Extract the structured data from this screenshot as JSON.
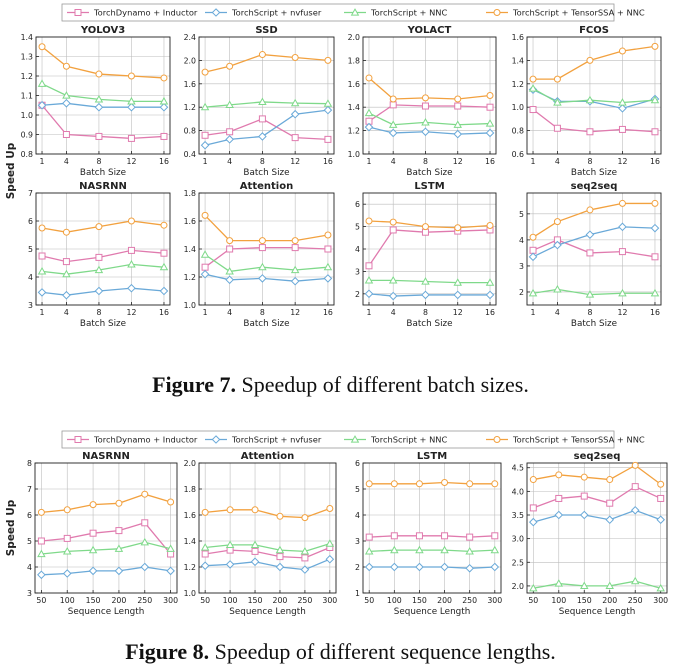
{
  "colors": {
    "TorchDynamo + Inductor": "#e07aae",
    "TorchScript + nvfuser": "#6aa9d8",
    "TorchScript + NNC": "#7fd98a",
    "TorchScript + TensorSSA + NNC": "#f2a13f"
  },
  "figure7": {
    "legend": [
      "TorchDynamo + Inductor",
      "TorchScript + nvfuser",
      "TorchScript + NNC",
      "TorchScript + TensorSSA + NNC"
    ],
    "caption_label": "Figure 7.",
    "caption_text": "Speedup of different batch sizes."
  },
  "figure8": {
    "legend": [
      "TorchDynamo + Inductor",
      "TorchScript + nvfuser",
      "TorchScript + NNC",
      "TorchScript + TensorSSA + NNC"
    ],
    "caption_label": "Figure 8.",
    "caption_text": "Speedup of different sequence lengths."
  },
  "chart_data": [
    {
      "type": "line",
      "figure": 7,
      "title": "YOLOV3",
      "xlabel": "Batch Size",
      "ylabel": "Speed Up",
      "x": [
        1,
        4,
        8,
        12,
        16
      ],
      "xticks": [
        1,
        4,
        8,
        12,
        16
      ],
      "ylim": [
        0.8,
        1.4
      ],
      "yticks": [
        "0.8",
        "0.9",
        "1.0",
        "1.1",
        "1.2",
        "1.3",
        "1.4"
      ],
      "series": [
        {
          "name": "TorchDynamo + Inductor",
          "values": [
            1.05,
            0.9,
            0.89,
            0.88,
            0.89
          ]
        },
        {
          "name": "TorchScript + nvfuser",
          "values": [
            1.05,
            1.06,
            1.04,
            1.04,
            1.04
          ]
        },
        {
          "name": "TorchScript + NNC",
          "values": [
            1.16,
            1.1,
            1.08,
            1.07,
            1.07
          ]
        },
        {
          "name": "TorchScript + TensorSSA + NNC",
          "values": [
            1.35,
            1.25,
            1.21,
            1.2,
            1.19
          ]
        }
      ]
    },
    {
      "type": "line",
      "figure": 7,
      "title": "SSD",
      "xlabel": "Batch Size",
      "ylabel": "",
      "x": [
        1,
        4,
        8,
        12,
        16
      ],
      "xticks": [
        1,
        4,
        8,
        12,
        16
      ],
      "ylim": [
        0.4,
        2.4
      ],
      "yticks": [
        "0.4",
        "0.8",
        "1.2",
        "1.6",
        "2.0",
        "2.4"
      ],
      "series": [
        {
          "name": "TorchDynamo + Inductor",
          "values": [
            0.72,
            0.78,
            1.0,
            0.68,
            0.65
          ]
        },
        {
          "name": "TorchScript + nvfuser",
          "values": [
            0.55,
            0.65,
            0.7,
            1.08,
            1.15
          ]
        },
        {
          "name": "TorchScript + NNC",
          "values": [
            1.2,
            1.24,
            1.29,
            1.27,
            1.26
          ]
        },
        {
          "name": "TorchScript + TensorSSA + NNC",
          "values": [
            1.8,
            1.9,
            2.1,
            2.05,
            2.0
          ]
        }
      ]
    },
    {
      "type": "line",
      "figure": 7,
      "title": "YOLACT",
      "xlabel": "Batch Size",
      "ylabel": "",
      "x": [
        1,
        4,
        8,
        12,
        16
      ],
      "xticks": [
        1,
        4,
        8,
        12,
        16
      ],
      "ylim": [
        1.0,
        2.0
      ],
      "yticks": [
        "1.0",
        "1.2",
        "1.4",
        "1.6",
        "1.8",
        "2.0"
      ],
      "series": [
        {
          "name": "TorchDynamo + Inductor",
          "values": [
            1.28,
            1.42,
            1.41,
            1.41,
            1.4
          ]
        },
        {
          "name": "TorchScript + nvfuser",
          "values": [
            1.23,
            1.18,
            1.19,
            1.17,
            1.18
          ]
        },
        {
          "name": "TorchScript + NNC",
          "values": [
            1.35,
            1.25,
            1.27,
            1.25,
            1.26
          ]
        },
        {
          "name": "TorchScript + TensorSSA + NNC",
          "values": [
            1.65,
            1.47,
            1.48,
            1.47,
            1.5
          ]
        }
      ]
    },
    {
      "type": "line",
      "figure": 7,
      "title": "FCOS",
      "xlabel": "Batch Size",
      "ylabel": "",
      "x": [
        1,
        4,
        8,
        12,
        16
      ],
      "xticks": [
        1,
        4,
        8,
        12,
        16
      ],
      "ylim": [
        0.6,
        1.6
      ],
      "yticks": [
        "0.6",
        "0.8",
        "1.0",
        "1.2",
        "1.4",
        "1.6"
      ],
      "series": [
        {
          "name": "TorchDynamo + Inductor",
          "values": [
            0.98,
            0.82,
            0.79,
            0.81,
            0.79
          ]
        },
        {
          "name": "TorchScript + nvfuser",
          "values": [
            1.15,
            1.05,
            1.05,
            0.99,
            1.07
          ]
        },
        {
          "name": "TorchScript + NNC",
          "values": [
            1.16,
            1.04,
            1.06,
            1.04,
            1.06
          ]
        },
        {
          "name": "TorchScript + TensorSSA + NNC",
          "values": [
            1.24,
            1.24,
            1.4,
            1.48,
            1.52
          ]
        }
      ]
    },
    {
      "type": "line",
      "figure": 7,
      "title": "NASRNN",
      "xlabel": "Batch Size",
      "ylabel": "",
      "x": [
        1,
        4,
        8,
        12,
        16
      ],
      "xticks": [
        1,
        4,
        8,
        12,
        16
      ],
      "ylim": [
        3,
        7
      ],
      "yticks": [
        "3",
        "4",
        "5",
        "6",
        "7"
      ],
      "series": [
        {
          "name": "TorchDynamo + Inductor",
          "values": [
            4.75,
            4.55,
            4.7,
            4.95,
            4.85
          ]
        },
        {
          "name": "TorchScript + nvfuser",
          "values": [
            3.45,
            3.35,
            3.5,
            3.6,
            3.5
          ]
        },
        {
          "name": "TorchScript + NNC",
          "values": [
            4.2,
            4.1,
            4.25,
            4.45,
            4.35
          ]
        },
        {
          "name": "TorchScript + TensorSSA + NNC",
          "values": [
            5.75,
            5.6,
            5.8,
            6.0,
            5.85
          ]
        }
      ]
    },
    {
      "type": "line",
      "figure": 7,
      "title": "Attention",
      "xlabel": "Batch Size",
      "ylabel": "",
      "x": [
        1,
        4,
        8,
        12,
        16
      ],
      "xticks": [
        1,
        4,
        8,
        12,
        16
      ],
      "ylim": [
        1.0,
        1.8
      ],
      "yticks": [
        "1.0",
        "1.2",
        "1.4",
        "1.6",
        "1.8"
      ],
      "series": [
        {
          "name": "TorchDynamo + Inductor",
          "values": [
            1.27,
            1.4,
            1.41,
            1.41,
            1.4
          ]
        },
        {
          "name": "TorchScript + nvfuser",
          "values": [
            1.22,
            1.18,
            1.19,
            1.17,
            1.19
          ]
        },
        {
          "name": "TorchScript + NNC",
          "values": [
            1.36,
            1.24,
            1.27,
            1.25,
            1.27
          ]
        },
        {
          "name": "TorchScript + TensorSSA + NNC",
          "values": [
            1.64,
            1.46,
            1.46,
            1.46,
            1.5
          ]
        }
      ]
    },
    {
      "type": "line",
      "figure": 7,
      "title": "LSTM",
      "xlabel": "Batch Size",
      "ylabel": "",
      "x": [
        1,
        4,
        8,
        12,
        16
      ],
      "xticks": [
        1,
        4,
        8,
        12,
        16
      ],
      "ylim": [
        1.5,
        6.5
      ],
      "yticks": [
        "2",
        "3",
        "4",
        "5",
        "6"
      ],
      "series": [
        {
          "name": "TorchDynamo + Inductor",
          "values": [
            3.25,
            4.85,
            4.75,
            4.8,
            4.85
          ]
        },
        {
          "name": "TorchScript + nvfuser",
          "values": [
            2.0,
            1.9,
            1.95,
            1.95,
            1.95
          ]
        },
        {
          "name": "TorchScript + NNC",
          "values": [
            2.6,
            2.6,
            2.55,
            2.5,
            2.5
          ]
        },
        {
          "name": "TorchScript + TensorSSA + NNC",
          "values": [
            5.25,
            5.2,
            5.0,
            4.95,
            5.05
          ]
        }
      ]
    },
    {
      "type": "line",
      "figure": 7,
      "title": "seq2seq",
      "xlabel": "Batch Size",
      "ylabel": "",
      "x": [
        1,
        4,
        8,
        12,
        16
      ],
      "xticks": [
        1,
        4,
        8,
        12,
        16
      ],
      "ylim": [
        1.5,
        5.8
      ],
      "yticks": [
        "2",
        "3",
        "4",
        "5"
      ],
      "series": [
        {
          "name": "TorchDynamo + Inductor",
          "values": [
            3.6,
            4.0,
            3.5,
            3.55,
            3.35
          ]
        },
        {
          "name": "TorchScript + nvfuser",
          "values": [
            3.35,
            3.8,
            4.2,
            4.5,
            4.45
          ]
        },
        {
          "name": "TorchScript + NNC",
          "values": [
            1.95,
            2.1,
            1.9,
            1.95,
            1.95
          ]
        },
        {
          "name": "TorchScript + TensorSSA + NNC",
          "values": [
            4.1,
            4.7,
            5.15,
            5.4,
            5.4
          ]
        }
      ]
    },
    {
      "type": "line",
      "figure": 8,
      "title": "NASRNN",
      "xlabel": "Sequence Length",
      "ylabel": "Speed Up",
      "x": [
        50,
        100,
        150,
        200,
        250,
        300
      ],
      "xticks": [
        50,
        100,
        150,
        200,
        250,
        300
      ],
      "ylim": [
        3,
        8
      ],
      "yticks": [
        "3",
        "4",
        "5",
        "6",
        "7",
        "8"
      ],
      "series": [
        {
          "name": "TorchDynamo + Inductor",
          "values": [
            5.0,
            5.1,
            5.3,
            5.4,
            5.7,
            4.5
          ]
        },
        {
          "name": "TorchScript + nvfuser",
          "values": [
            3.7,
            3.75,
            3.85,
            3.85,
            4.0,
            3.85
          ]
        },
        {
          "name": "TorchScript + NNC",
          "values": [
            4.5,
            4.6,
            4.65,
            4.7,
            4.95,
            4.7
          ]
        },
        {
          "name": "TorchScript + TensorSSA + NNC",
          "values": [
            6.1,
            6.2,
            6.4,
            6.45,
            6.8,
            6.5
          ]
        }
      ]
    },
    {
      "type": "line",
      "figure": 8,
      "title": "Attention",
      "xlabel": "Sequence Length",
      "ylabel": "",
      "x": [
        50,
        100,
        150,
        200,
        250,
        300
      ],
      "xticks": [
        50,
        100,
        150,
        200,
        250,
        300
      ],
      "ylim": [
        1.0,
        2.0
      ],
      "yticks": [
        "1.0",
        "1.2",
        "1.4",
        "1.6",
        "1.8",
        "2.0"
      ],
      "series": [
        {
          "name": "TorchDynamo + Inductor",
          "values": [
            1.3,
            1.33,
            1.32,
            1.28,
            1.27,
            1.35
          ]
        },
        {
          "name": "TorchScript + nvfuser",
          "values": [
            1.21,
            1.22,
            1.24,
            1.2,
            1.18,
            1.26
          ]
        },
        {
          "name": "TorchScript + NNC",
          "values": [
            1.35,
            1.37,
            1.37,
            1.33,
            1.32,
            1.38
          ]
        },
        {
          "name": "TorchScript + TensorSSA + NNC",
          "values": [
            1.62,
            1.64,
            1.64,
            1.59,
            1.58,
            1.65
          ]
        }
      ]
    },
    {
      "type": "line",
      "figure": 8,
      "title": "LSTM",
      "xlabel": "Sequence Length",
      "ylabel": "",
      "x": [
        50,
        100,
        150,
        200,
        250,
        300
      ],
      "xticks": [
        50,
        100,
        150,
        200,
        250,
        300
      ],
      "ylim": [
        1,
        6
      ],
      "yticks": [
        "1",
        "2",
        "3",
        "4",
        "5",
        "6"
      ],
      "series": [
        {
          "name": "TorchDynamo + Inductor",
          "values": [
            3.15,
            3.2,
            3.2,
            3.2,
            3.15,
            3.2
          ]
        },
        {
          "name": "TorchScript + nvfuser",
          "values": [
            2.0,
            2.0,
            2.0,
            2.0,
            1.95,
            2.0
          ]
        },
        {
          "name": "TorchScript + NNC",
          "values": [
            2.6,
            2.65,
            2.65,
            2.65,
            2.6,
            2.65
          ]
        },
        {
          "name": "TorchScript + TensorSSA + NNC",
          "values": [
            5.2,
            5.2,
            5.2,
            5.25,
            5.2,
            5.2
          ]
        }
      ]
    },
    {
      "type": "line",
      "figure": 8,
      "title": "seq2seq",
      "xlabel": "Sequence Length",
      "ylabel": "",
      "x": [
        50,
        100,
        150,
        200,
        250,
        300
      ],
      "xticks": [
        50,
        100,
        150,
        200,
        250,
        300
      ],
      "ylim": [
        1.85,
        4.6
      ],
      "yticks": [
        "2.0",
        "2.5",
        "3.0",
        "3.5",
        "4.0",
        "4.5"
      ],
      "series": [
        {
          "name": "TorchDynamo + Inductor",
          "values": [
            3.65,
            3.85,
            3.9,
            3.75,
            4.1,
            3.85
          ]
        },
        {
          "name": "TorchScript + nvfuser",
          "values": [
            3.35,
            3.5,
            3.5,
            3.4,
            3.6,
            3.4
          ]
        },
        {
          "name": "TorchScript + NNC",
          "values": [
            1.95,
            2.05,
            2.0,
            2.0,
            2.1,
            1.95
          ]
        },
        {
          "name": "TorchScript + TensorSSA + NNC",
          "values": [
            4.25,
            4.35,
            4.3,
            4.25,
            4.55,
            4.15
          ]
        }
      ]
    }
  ]
}
